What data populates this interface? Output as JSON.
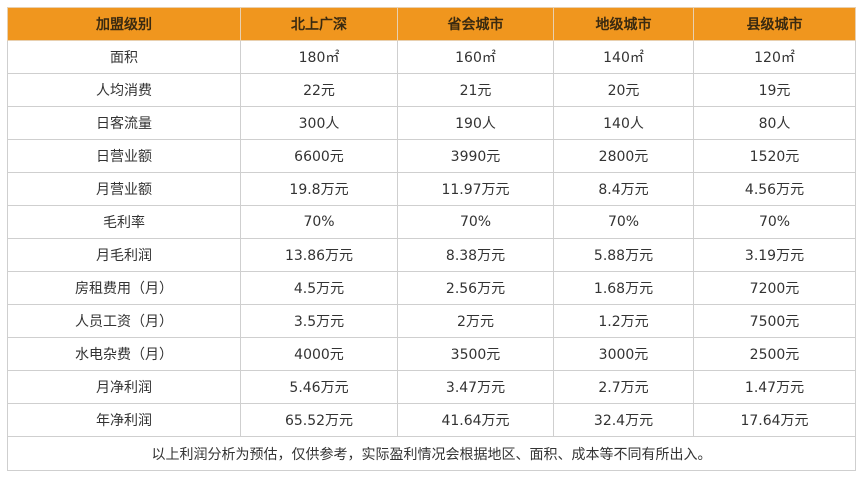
{
  "table": {
    "header": [
      "加盟级别",
      "北上广深",
      "省会城市",
      "地级城市",
      "县级城市"
    ],
    "rows": [
      [
        "面积",
        "180㎡",
        "160㎡",
        "140㎡",
        "120㎡"
      ],
      [
        "人均消费",
        "22元",
        "21元",
        "20元",
        "19元"
      ],
      [
        "日客流量",
        "300人",
        "190人",
        "140人",
        "80人"
      ],
      [
        "日营业额",
        "6600元",
        "3990元",
        "2800元",
        "1520元"
      ],
      [
        "月营业额",
        "19.8万元",
        "11.97万元",
        "8.4万元",
        "4.56万元"
      ],
      [
        "毛利率",
        "70%",
        "70%",
        "70%",
        "70%"
      ],
      [
        "月毛利润",
        "13.86万元",
        "8.38万元",
        "5.88万元",
        "3.19万元"
      ],
      [
        "房租费用（月）",
        "4.5万元",
        "2.56万元",
        "1.68万元",
        "7200元"
      ],
      [
        "人员工资（月）",
        "3.5万元",
        "2万元",
        "1.2万元",
        "7500元"
      ],
      [
        "水电杂费（月）",
        "4000元",
        "3500元",
        "3000元",
        "2500元"
      ],
      [
        "月净利润",
        "5.46万元",
        "3.47万元",
        "2.7万元",
        "1.47万元"
      ],
      [
        "年净利润",
        "65.52万元",
        "41.64万元",
        "32.4万元",
        "17.64万元"
      ]
    ],
    "note": "以上利润分析为预估，仅供参考，实际盈利情况会根据地区、面积、成本等不同有所出入。"
  }
}
